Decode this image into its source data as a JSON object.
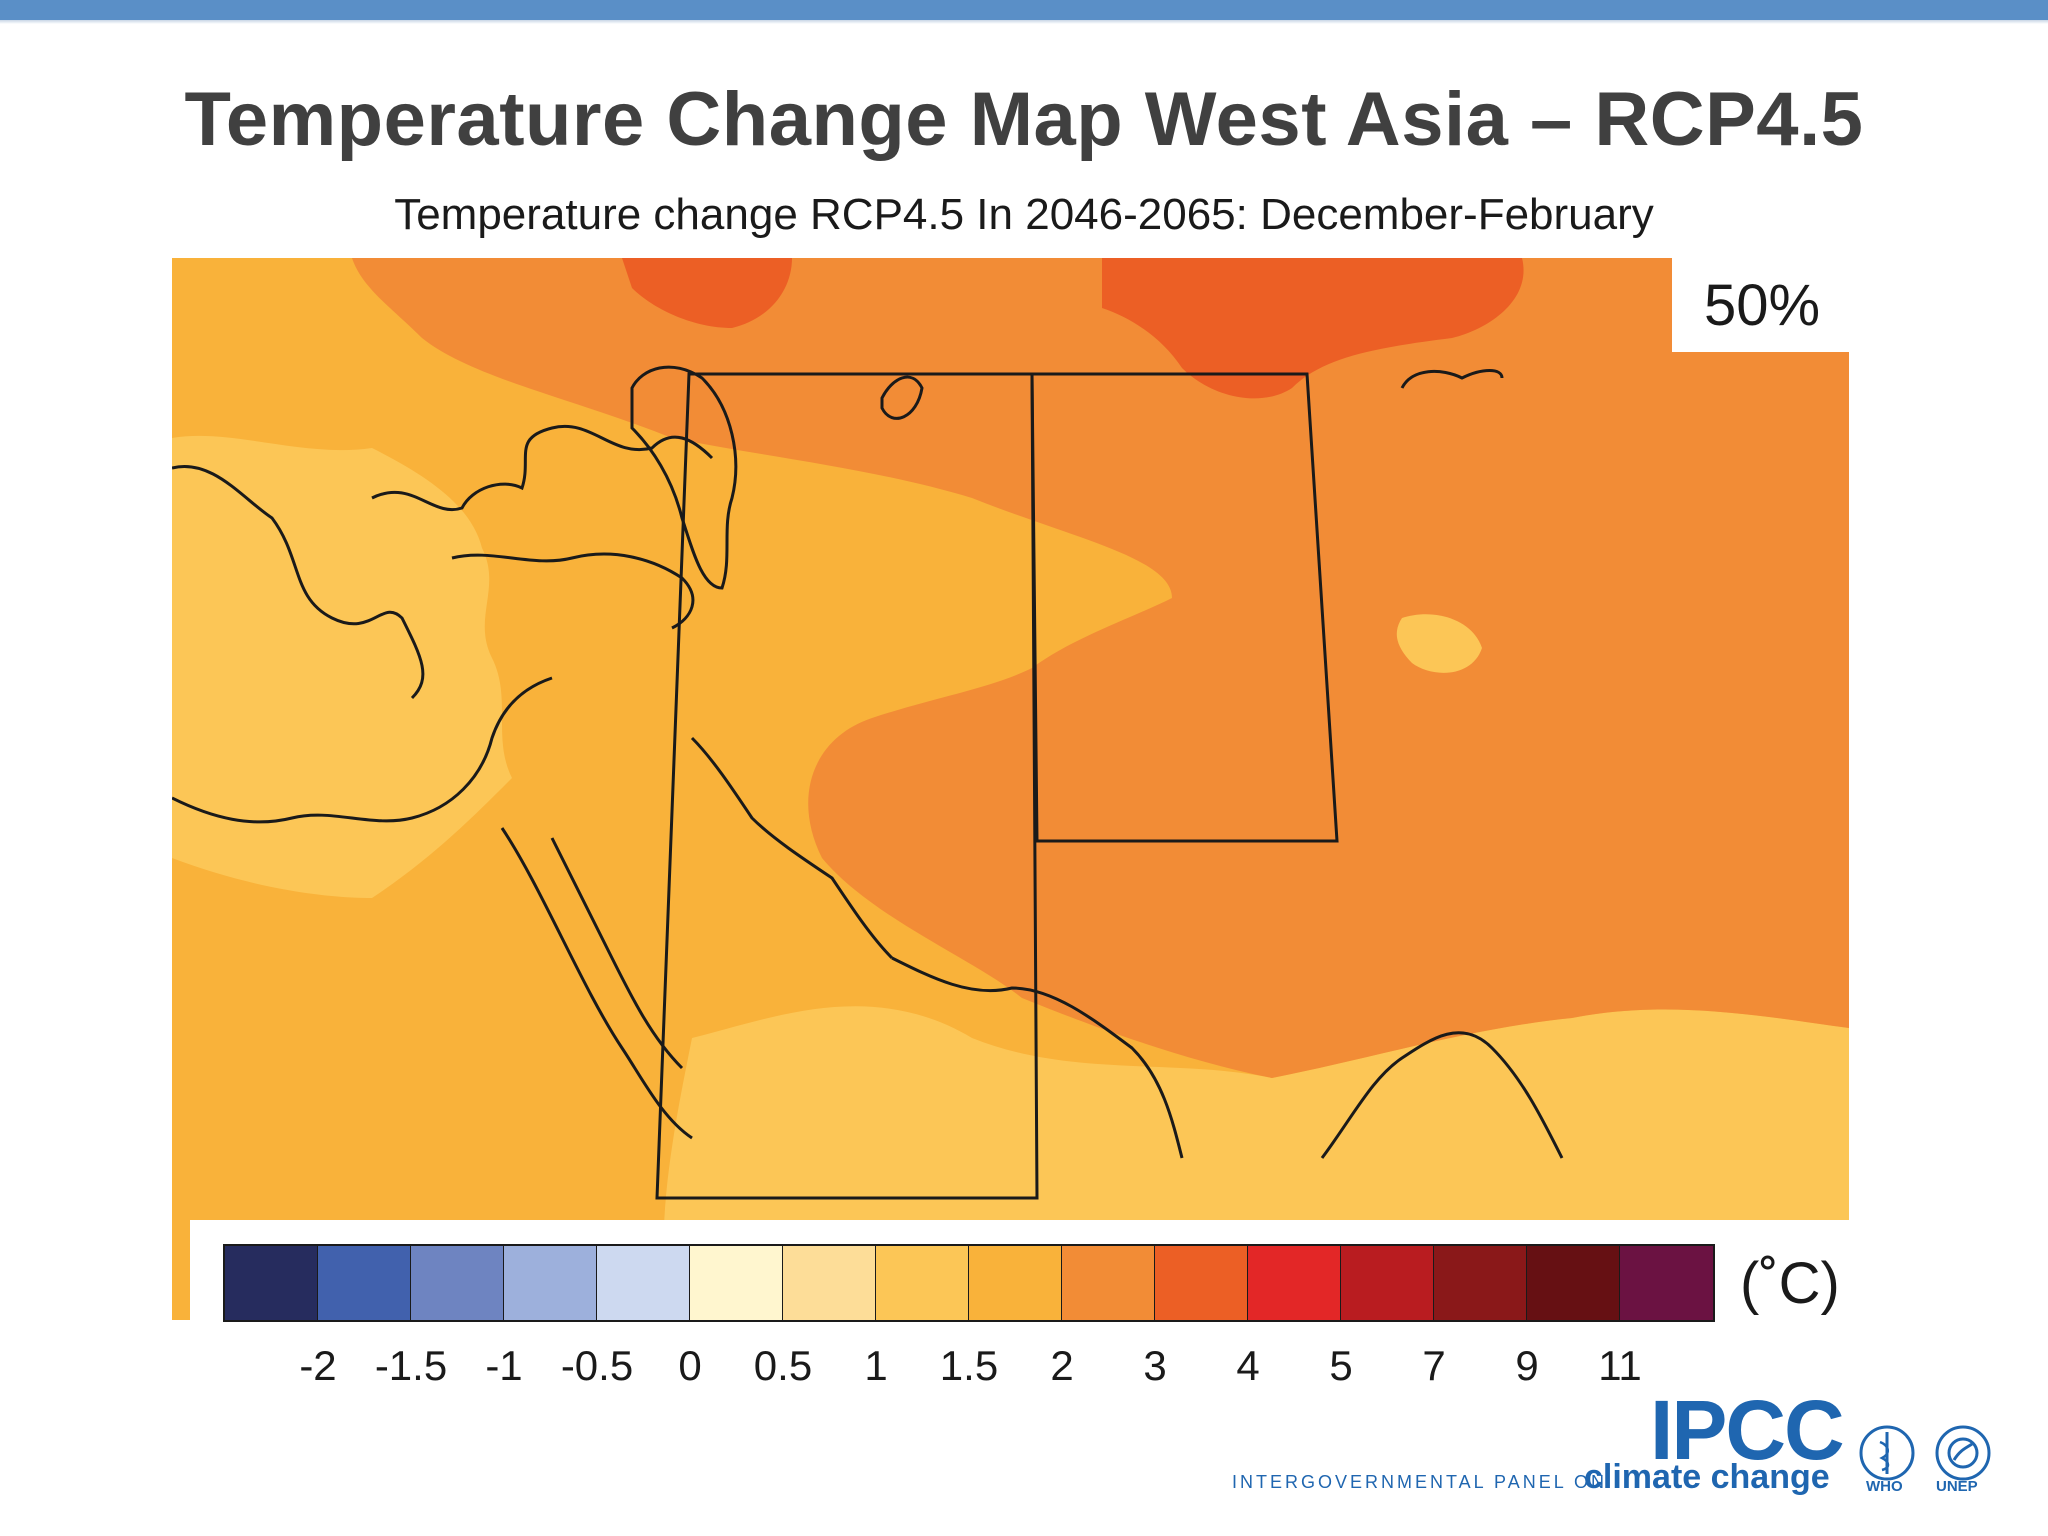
{
  "slide": {
    "title": "Temperature Change Map West Asia – RCP4.5"
  },
  "map": {
    "subtitle": "Temperature change RCP4.5 In 2046-2065: December-February",
    "percentile_label": "50%",
    "region_boxes": [
      "west-asia-region-box",
      "central-asia-region-box"
    ]
  },
  "legend": {
    "unit": "(˚C)",
    "ticks": [
      "-2",
      "-1.5",
      "-1",
      "-0.5",
      "0",
      "0.5",
      "1",
      "1.5",
      "2",
      "3",
      "4",
      "5",
      "7",
      "9",
      "11"
    ],
    "colors": [
      "#262c5e",
      "#4161ad",
      "#6e84c1",
      "#9db0dc",
      "#cdd9f0",
      "#fff6cf",
      "#fddd98",
      "#fcc656",
      "#f9b23a",
      "#f28c36",
      "#ec5f25",
      "#e32727",
      "#b91c20",
      "#8a1819",
      "#661013",
      "#6b1242"
    ]
  },
  "logos": {
    "ipcc": "IPCC",
    "ipcc_tagline_1": "INTERGOVERNMENTAL PANEL ON",
    "ipcc_tagline_2": "climate change",
    "who": "WHO",
    "unep": "UNEP"
  }
}
